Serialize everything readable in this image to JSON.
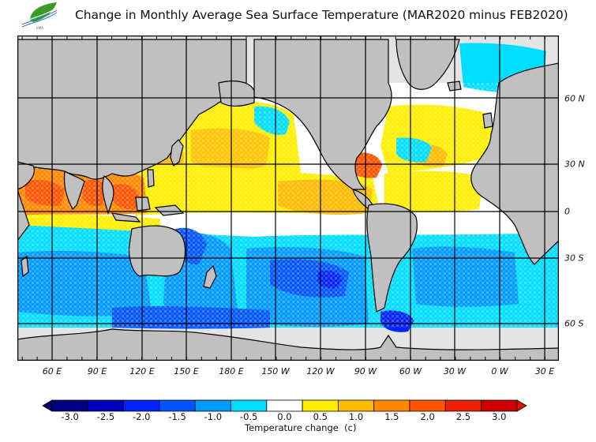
{
  "header": {
    "title": "Change in Monthly Average Sea Surface Temperature (MAR2020 minus FEB2020)",
    "logo_icon": "leaf-wave-logo",
    "logo_text": "KMA"
  },
  "map": {
    "projection": "equirectangular",
    "land_color": "#c0c0c0",
    "ice_color": "#e4e4e4",
    "border_color": "#000000",
    "lon_labels": [
      "60 E",
      "90 E",
      "120 E",
      "150 E",
      "180 E",
      "150 W",
      "120 W",
      "90 W",
      "60 W",
      "30 W",
      "0 W",
      "30 E"
    ],
    "lat_labels": [
      "60 N",
      "30 N",
      "0",
      "30 S",
      "60 S"
    ]
  },
  "legend": {
    "title": "Temperature change  (c)",
    "tick_labels": [
      "-3.0",
      "-2.5",
      "-2.0",
      "-1.5",
      "-1.0",
      "-0.5",
      "0.0",
      "0.5",
      "1.0",
      "1.5",
      "2.0",
      "2.5",
      "3.0"
    ],
    "colors": [
      "#000080",
      "#0000bb",
      "#0022ff",
      "#0055ff",
      "#0099ff",
      "#00ddff",
      "#ffffff",
      "#ffee00",
      "#ffbb00",
      "#ff8800",
      "#ff5500",
      "#ee2200",
      "#cc0000"
    ],
    "under_color": "#000066",
    "over_color": "#dd1100"
  }
}
